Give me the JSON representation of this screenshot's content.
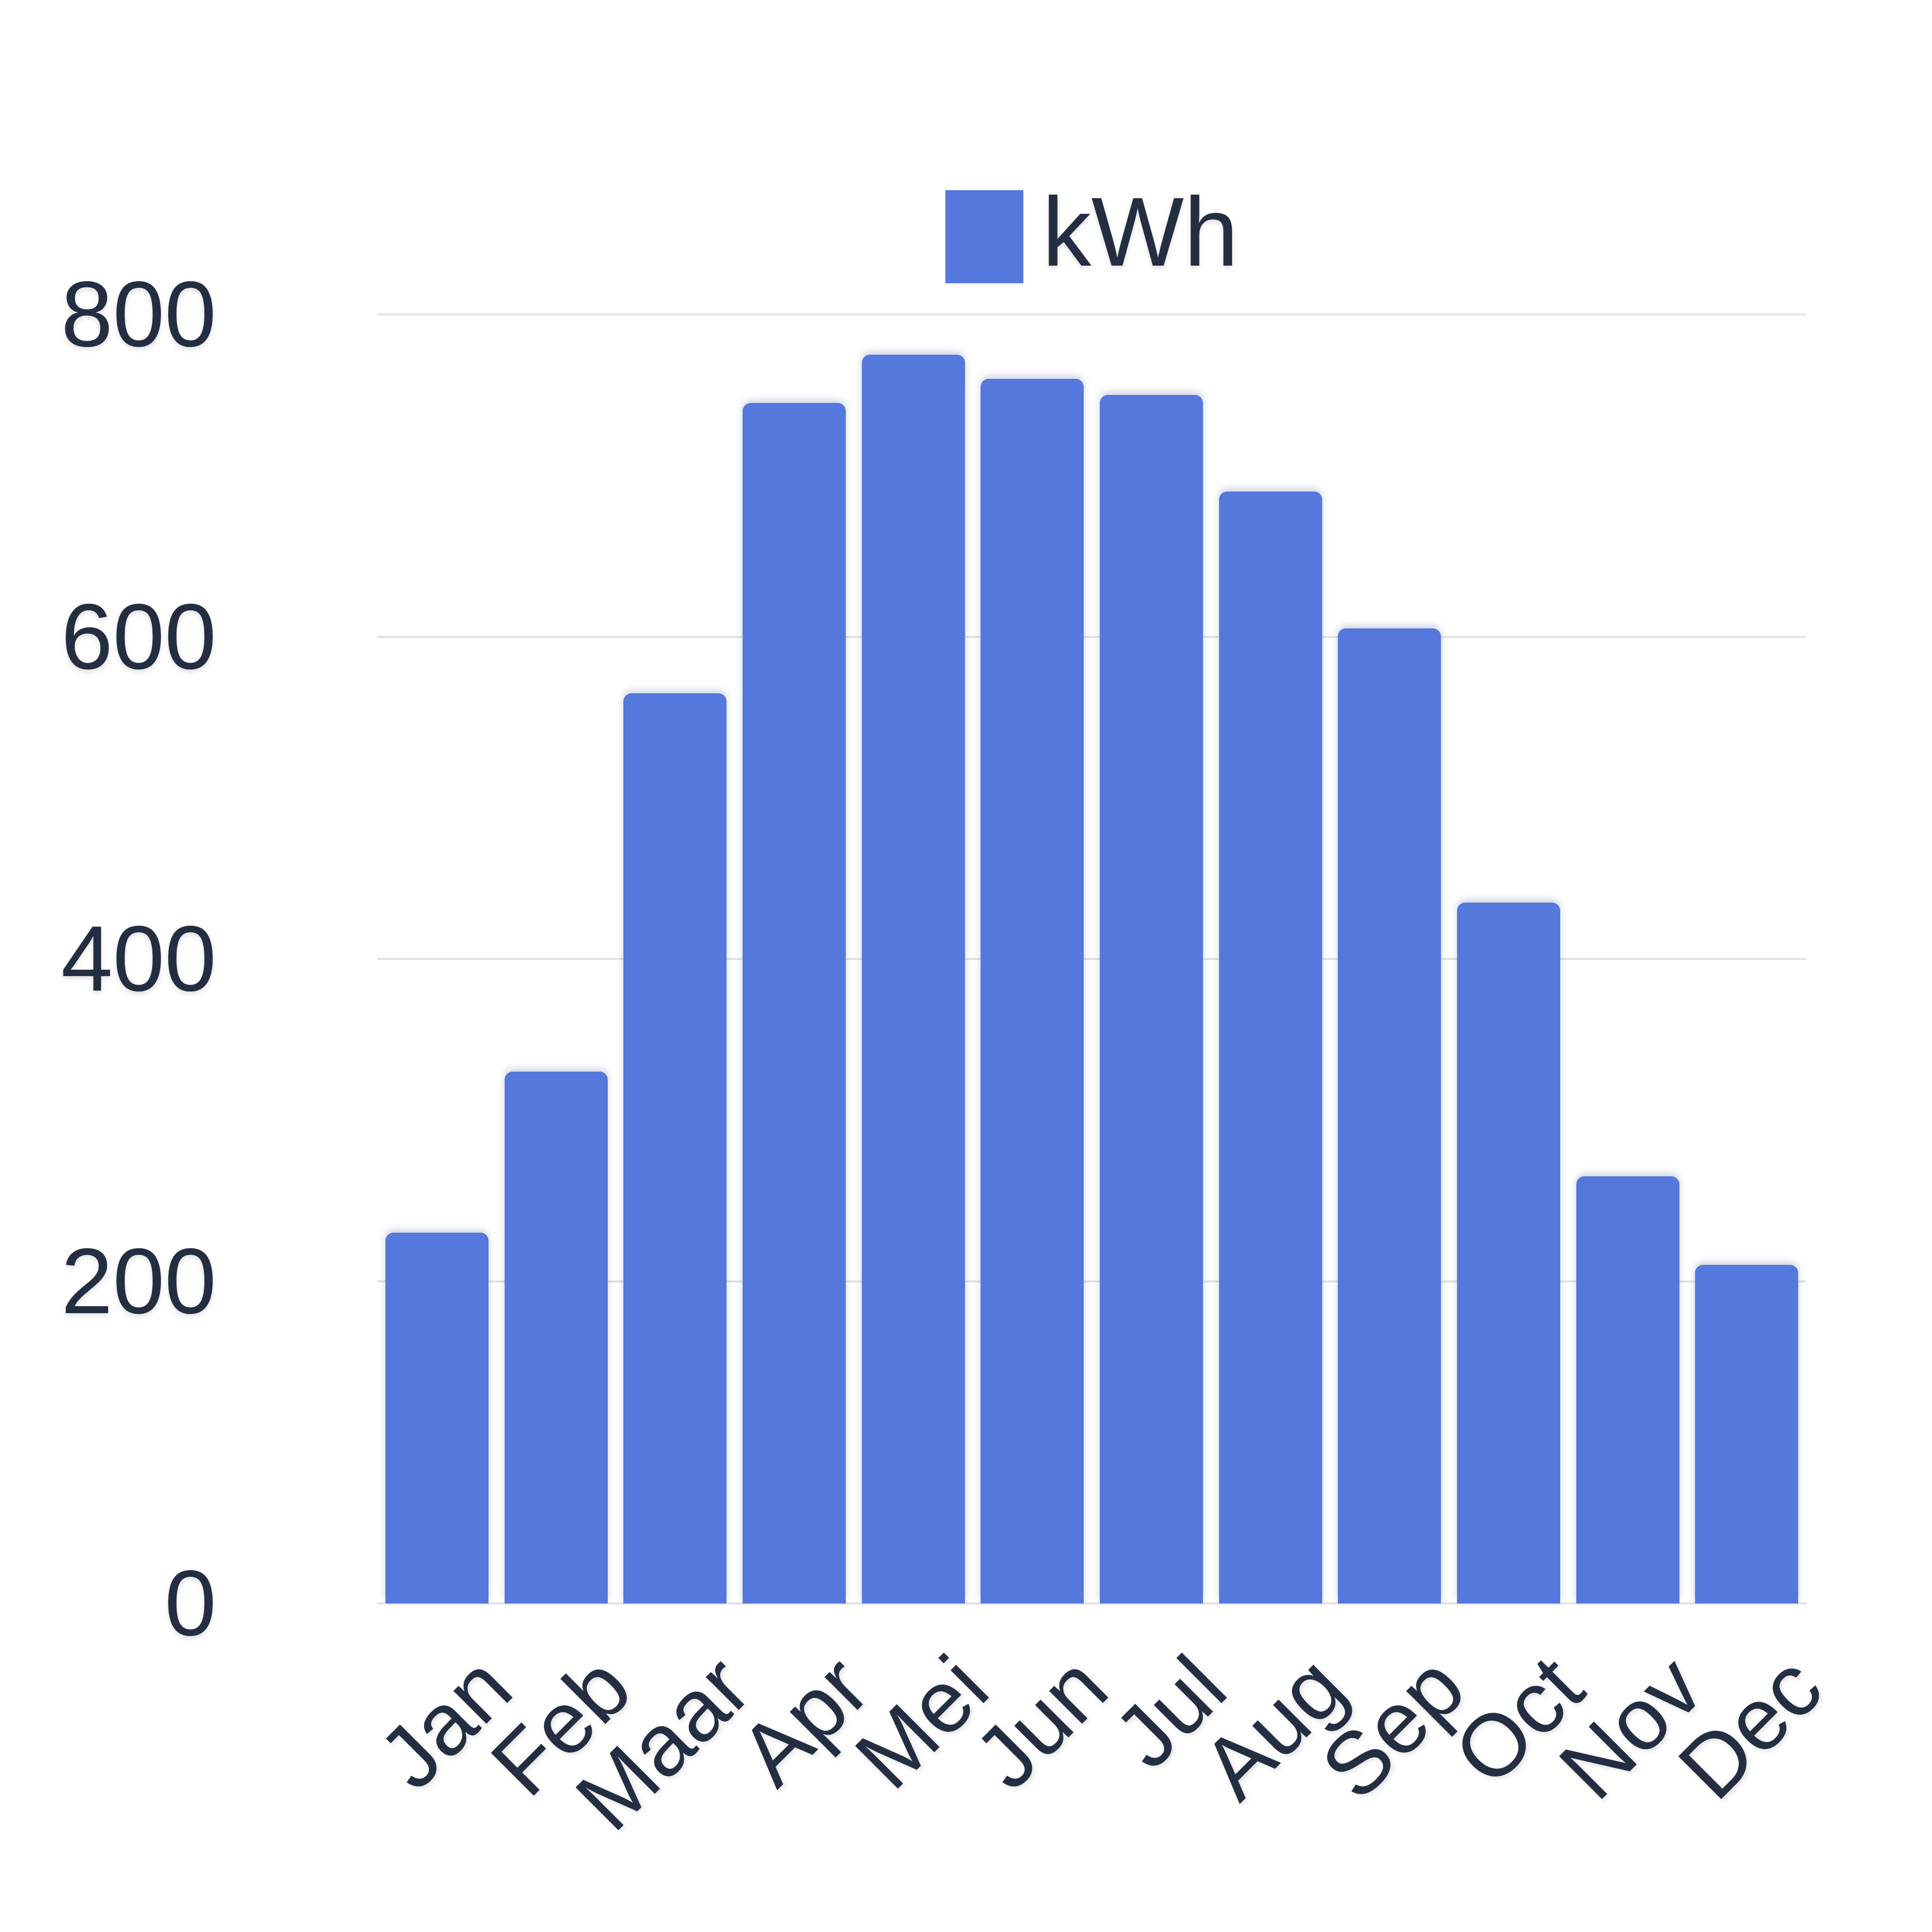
{
  "legend": {
    "label": "kWh"
  },
  "chart_data": {
    "type": "bar",
    "title": "",
    "categories": [
      "Jan",
      "Feb",
      "Maar",
      "Apr",
      "Mei",
      "Jun",
      "Jul",
      "Aug",
      "Sep",
      "Oct",
      "Nov",
      "Dec"
    ],
    "values": [
      230,
      330,
      565,
      745,
      775,
      760,
      750,
      690,
      605,
      435,
      265,
      210
    ],
    "series_name": "kWh",
    "unit": "kWh",
    "xlabel": "",
    "ylabel": "",
    "ylim": [
      0,
      800
    ],
    "yticks": [
      0,
      200,
      400,
      600,
      800
    ],
    "grid": true,
    "legend_position": "top-center",
    "x_label_rotation": -45,
    "colors": {
      "bar": "#5478DB",
      "text": "#242E42",
      "gridline": "#E2E2E2",
      "background": "#FFFFFF"
    }
  }
}
